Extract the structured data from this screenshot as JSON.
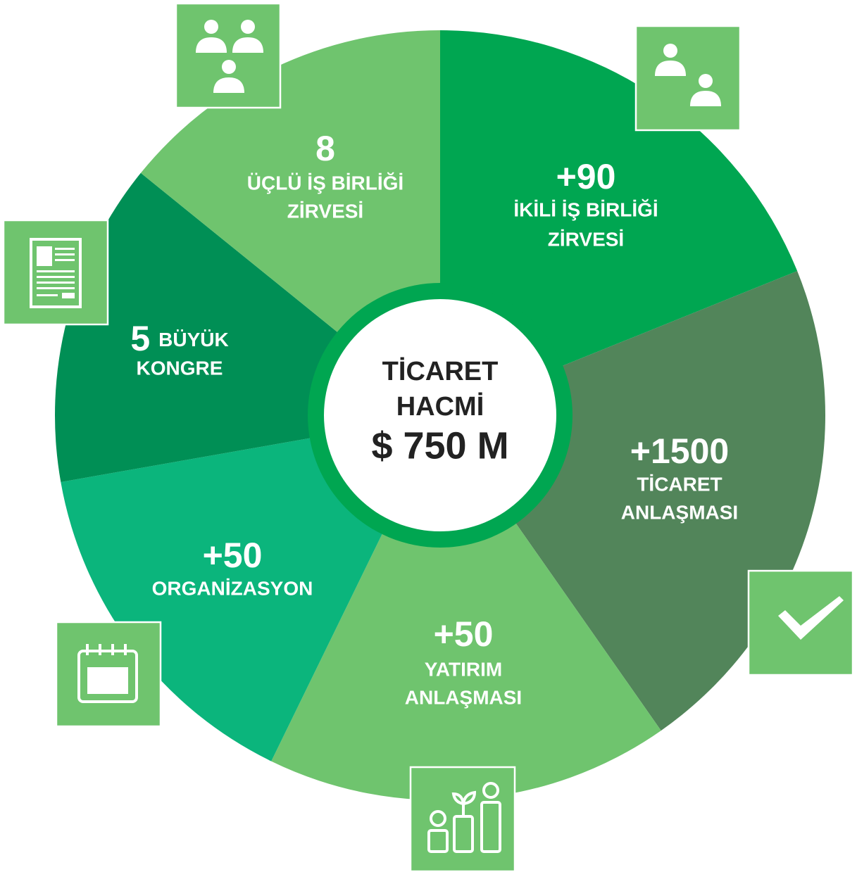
{
  "center": {
    "lines": [
      "TİCARET",
      "HACMİ"
    ],
    "value": "$ 750 M"
  },
  "segments": [
    {
      "value": "+90",
      "label": [
        "İKİLİ İŞ BİRLİĞİ",
        "ZİRVESİ"
      ]
    },
    {
      "value": "+1500",
      "label": [
        "TİCARET",
        "ANLAŞMASI"
      ]
    },
    {
      "value": "+50",
      "label": [
        "YATIRIM",
        "ANLAŞMASI"
      ]
    },
    {
      "value": "+50",
      "label": [
        "ORGANİZASYON"
      ]
    },
    {
      "value": "5",
      "label": [
        "BÜYÜK",
        "KONGRE"
      ]
    },
    {
      "value": "8",
      "label": [
        "ÜÇLÜ İŞ BİRLİĞİ",
        "ZİRVESİ"
      ]
    }
  ]
}
